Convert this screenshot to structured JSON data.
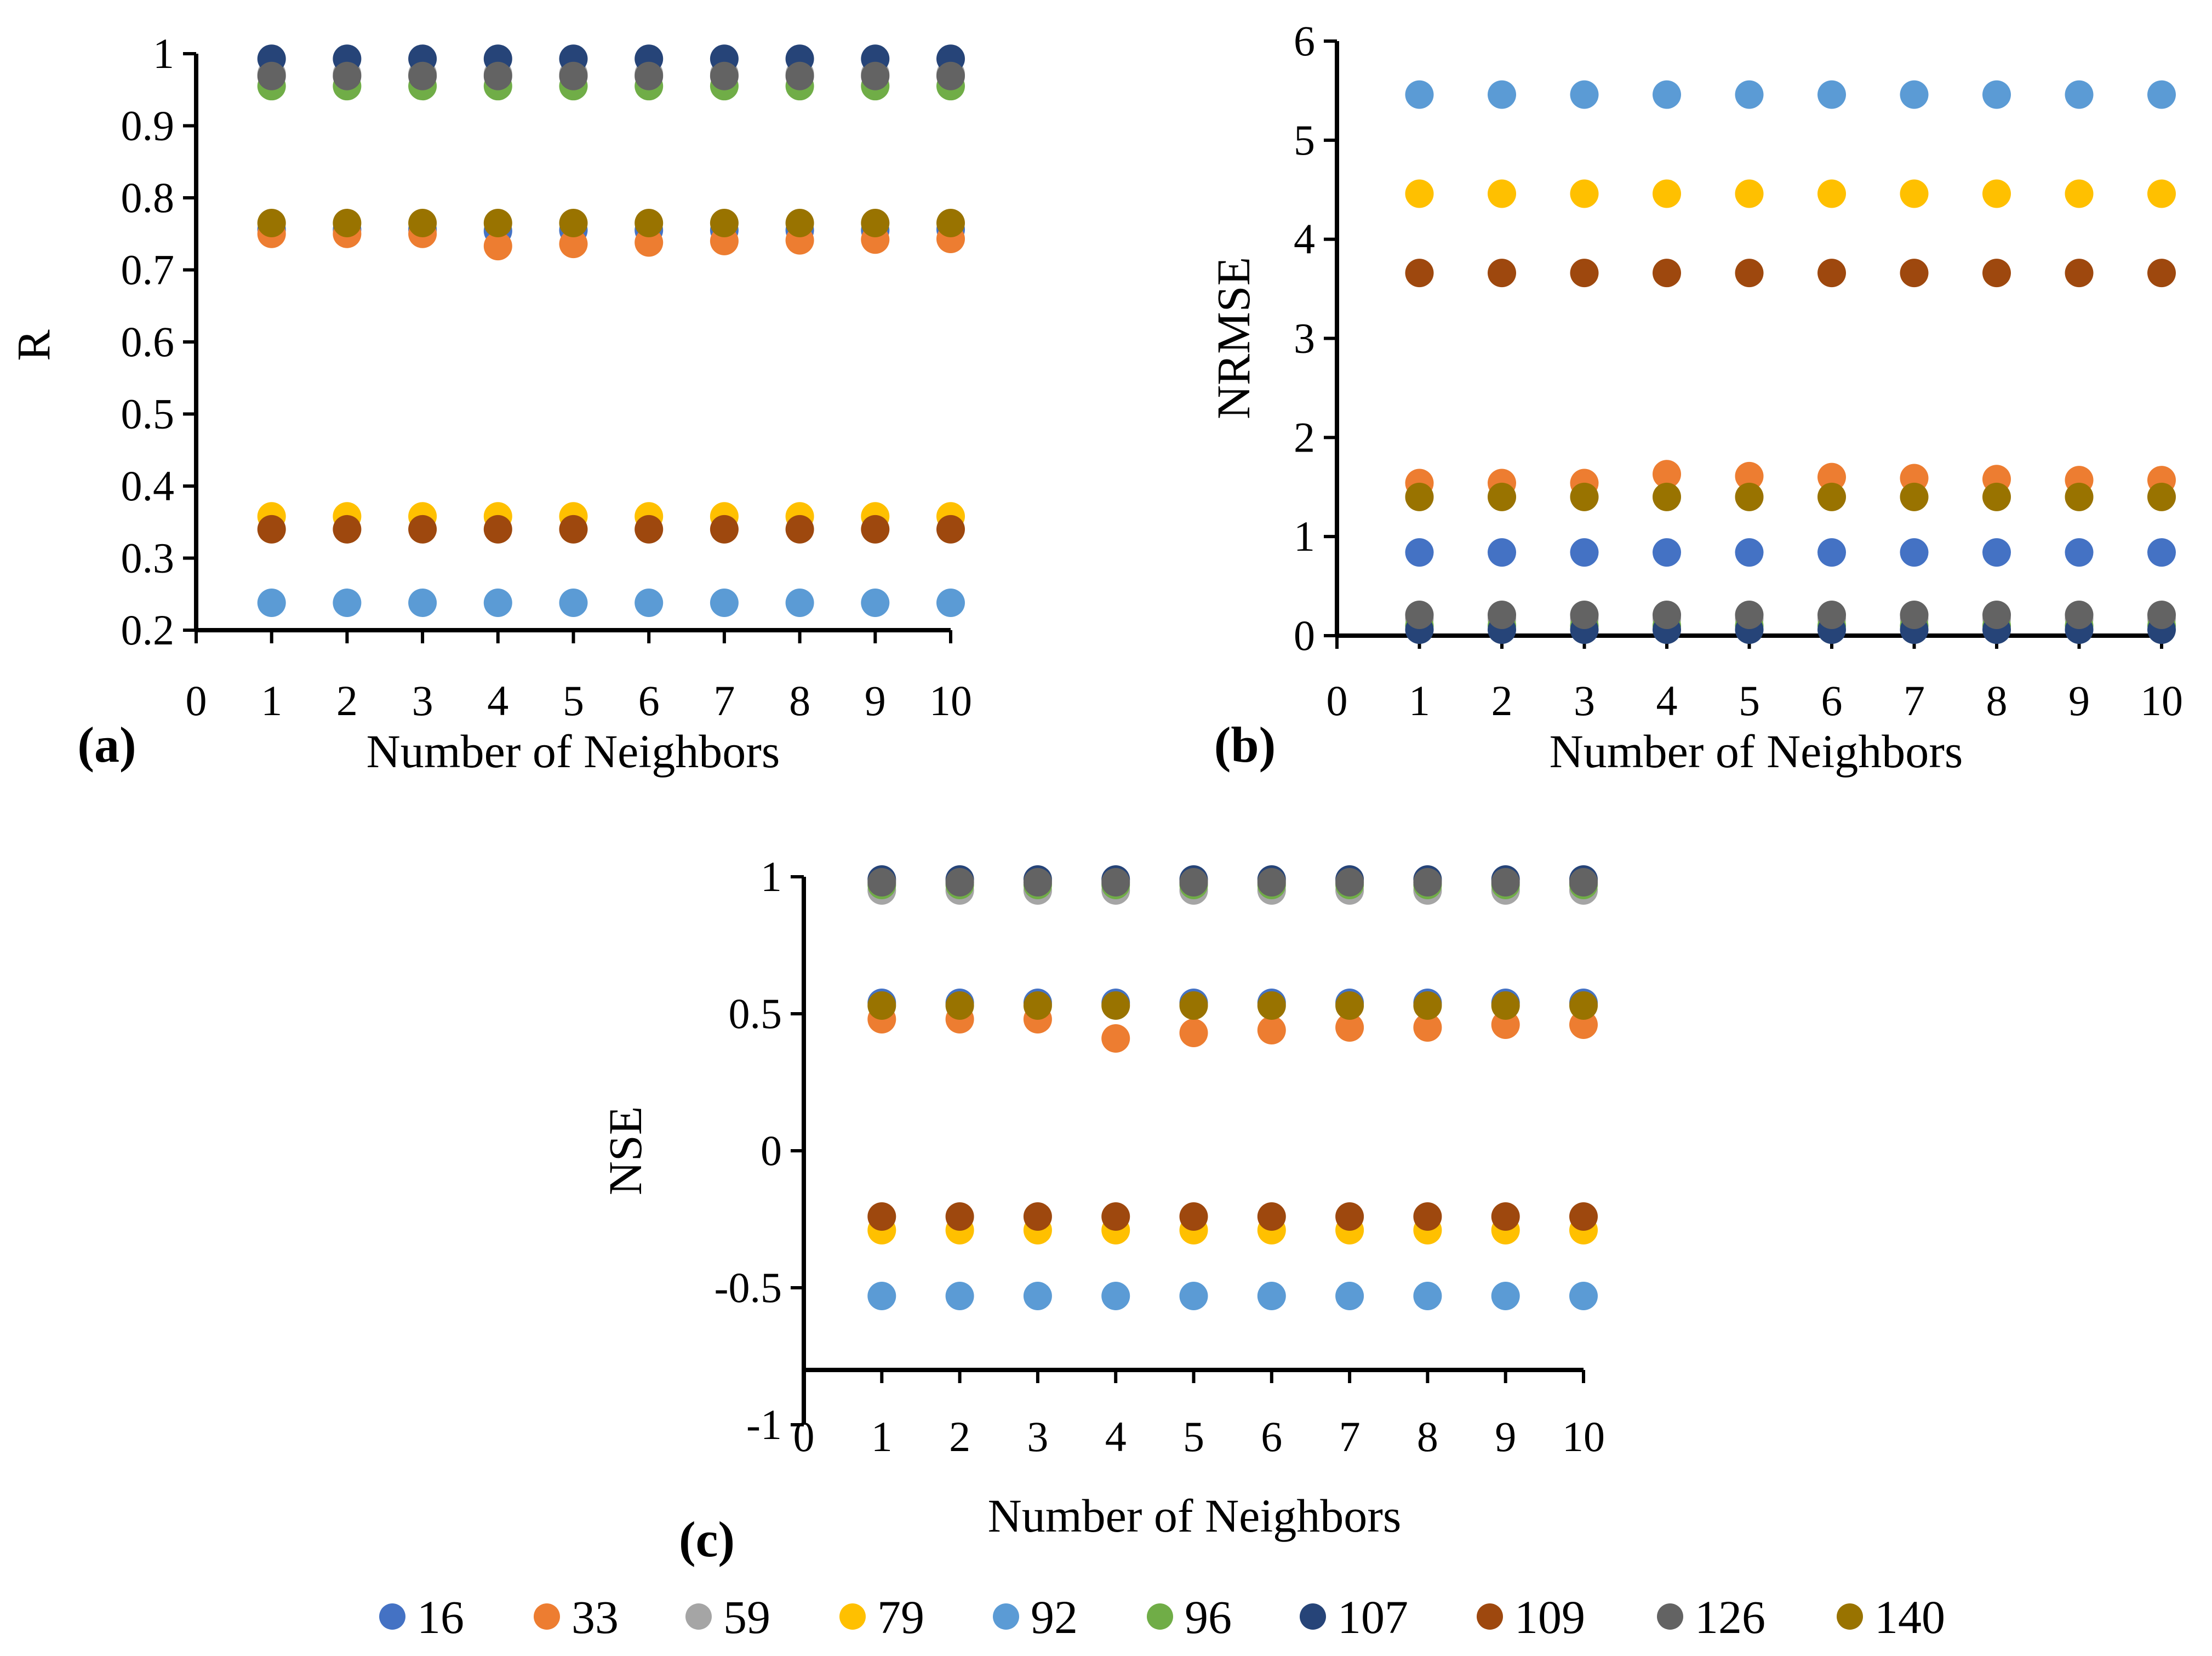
{
  "legend": {
    "labels": [
      "16",
      "33",
      "59",
      "79",
      "92",
      "96",
      "107",
      "109",
      "126",
      "140"
    ],
    "colors": [
      "#4472C4",
      "#ED7D31",
      "#A5A5A5",
      "#FFC000",
      "#5B9BD5",
      "#70AD47",
      "#264478",
      "#9E480E",
      "#636363",
      "#997300"
    ]
  },
  "chart_data": [
    {
      "type": "scatter",
      "panel_label": "(a)",
      "xlabel": "Number of Neighbors",
      "ylabel": "R",
      "xlim": [
        0,
        10
      ],
      "ylim": [
        0.2,
        1
      ],
      "x_ticks": [
        "0",
        "1",
        "2",
        "3",
        "4",
        "5",
        "6",
        "7",
        "8",
        "9",
        "10"
      ],
      "y_ticks": [
        "0.2",
        "0.3",
        "0.4",
        "0.5",
        "0.6",
        "0.7",
        "0.8",
        "0.9",
        "1"
      ],
      "x": [
        1,
        2,
        3,
        4,
        5,
        6,
        7,
        8,
        9,
        10
      ],
      "series": [
        {
          "name": "16",
          "values": [
            0.756,
            0.756,
            0.756,
            0.754,
            0.755,
            0.755,
            0.755,
            0.755,
            0.755,
            0.756
          ]
        },
        {
          "name": "33",
          "values": [
            0.75,
            0.75,
            0.75,
            0.733,
            0.736,
            0.738,
            0.74,
            0.741,
            0.742,
            0.743
          ]
        },
        {
          "name": "59",
          "values": [
            0.972,
            0.972,
            0.972,
            0.972,
            0.972,
            0.972,
            0.972,
            0.972,
            0.972,
            0.972
          ]
        },
        {
          "name": "79",
          "values": [
            0.358,
            0.358,
            0.358,
            0.358,
            0.358,
            0.358,
            0.358,
            0.358,
            0.358,
            0.358
          ]
        },
        {
          "name": "92",
          "values": [
            0.238,
            0.238,
            0.238,
            0.238,
            0.238,
            0.238,
            0.238,
            0.238,
            0.238,
            0.238
          ]
        },
        {
          "name": "96",
          "values": [
            0.955,
            0.955,
            0.955,
            0.955,
            0.955,
            0.955,
            0.955,
            0.955,
            0.955,
            0.955
          ]
        },
        {
          "name": "107",
          "values": [
            0.993,
            0.993,
            0.993,
            0.993,
            0.993,
            0.993,
            0.993,
            0.993,
            0.993,
            0.993
          ]
        },
        {
          "name": "109",
          "values": [
            0.34,
            0.34,
            0.34,
            0.34,
            0.34,
            0.34,
            0.34,
            0.34,
            0.34,
            0.34
          ]
        },
        {
          "name": "126",
          "values": [
            0.969,
            0.969,
            0.969,
            0.969,
            0.969,
            0.969,
            0.969,
            0.969,
            0.969,
            0.969
          ]
        },
        {
          "name": "140",
          "values": [
            0.765,
            0.765,
            0.765,
            0.765,
            0.765,
            0.765,
            0.765,
            0.765,
            0.765,
            0.765
          ]
        }
      ]
    },
    {
      "type": "scatter",
      "panel_label": "(b)",
      "xlabel": "Number of Neighbors",
      "ylabel": "NRMSE",
      "xlim": [
        0,
        10
      ],
      "ylim": [
        0,
        6
      ],
      "x_ticks": [
        "0",
        "1",
        "2",
        "3",
        "4",
        "5",
        "6",
        "7",
        "8",
        "9",
        "10"
      ],
      "y_ticks": [
        "0",
        "1",
        "2",
        "3",
        "4",
        "5",
        "6"
      ],
      "x": [
        1,
        2,
        3,
        4,
        5,
        6,
        7,
        8,
        9,
        10
      ],
      "series": [
        {
          "name": "16",
          "values": [
            0.84,
            0.84,
            0.84,
            0.84,
            0.84,
            0.84,
            0.84,
            0.84,
            0.84,
            0.84
          ]
        },
        {
          "name": "33",
          "values": [
            1.54,
            1.54,
            1.54,
            1.63,
            1.61,
            1.6,
            1.59,
            1.58,
            1.57,
            1.57
          ]
        },
        {
          "name": "59",
          "values": [
            0.17,
            0.17,
            0.17,
            0.17,
            0.17,
            0.17,
            0.17,
            0.17,
            0.17,
            0.17
          ]
        },
        {
          "name": "79",
          "values": [
            4.46,
            4.46,
            4.46,
            4.46,
            4.46,
            4.46,
            4.46,
            4.46,
            4.46,
            4.46
          ]
        },
        {
          "name": "92",
          "values": [
            5.46,
            5.46,
            5.46,
            5.46,
            5.46,
            5.46,
            5.46,
            5.46,
            5.46,
            5.46
          ]
        },
        {
          "name": "96",
          "values": [
            0.1,
            0.1,
            0.1,
            0.1,
            0.1,
            0.1,
            0.1,
            0.1,
            0.1,
            0.1
          ]
        },
        {
          "name": "107",
          "values": [
            0.06,
            0.06,
            0.06,
            0.06,
            0.06,
            0.06,
            0.06,
            0.06,
            0.06,
            0.06
          ]
        },
        {
          "name": "109",
          "values": [
            3.66,
            3.66,
            3.66,
            3.66,
            3.66,
            3.66,
            3.66,
            3.66,
            3.66,
            3.66
          ]
        },
        {
          "name": "126",
          "values": [
            0.21,
            0.21,
            0.21,
            0.21,
            0.21,
            0.21,
            0.21,
            0.21,
            0.21,
            0.21
          ]
        },
        {
          "name": "140",
          "values": [
            1.4,
            1.4,
            1.4,
            1.4,
            1.4,
            1.4,
            1.4,
            1.4,
            1.4,
            1.4
          ]
        }
      ]
    },
    {
      "type": "scatter",
      "panel_label": "(c)",
      "xlabel": "Number of Neighbors",
      "ylabel": "NSE",
      "xlim": [
        0,
        10
      ],
      "ylim": [
        -1,
        1
      ],
      "x_axis_crosses_at": -0.8,
      "x_ticks": [
        "0",
        "1",
        "2",
        "3",
        "4",
        "5",
        "6",
        "7",
        "8",
        "9",
        "10"
      ],
      "y_ticks": [
        "-1",
        "-0.5",
        "0",
        "0.5",
        "1"
      ],
      "x": [
        1,
        2,
        3,
        4,
        5,
        6,
        7,
        8,
        9,
        10
      ],
      "series": [
        {
          "name": "16",
          "values": [
            0.54,
            0.54,
            0.54,
            0.54,
            0.54,
            0.54,
            0.54,
            0.54,
            0.54,
            0.54
          ]
        },
        {
          "name": "33",
          "values": [
            0.48,
            0.48,
            0.48,
            0.41,
            0.43,
            0.44,
            0.45,
            0.45,
            0.46,
            0.46
          ]
        },
        {
          "name": "59",
          "values": [
            0.95,
            0.95,
            0.95,
            0.95,
            0.95,
            0.95,
            0.95,
            0.95,
            0.95,
            0.95
          ]
        },
        {
          "name": "79",
          "values": [
            -0.29,
            -0.29,
            -0.29,
            -0.29,
            -0.29,
            -0.29,
            -0.29,
            -0.29,
            -0.29,
            -0.29
          ]
        },
        {
          "name": "92",
          "values": [
            -0.53,
            -0.53,
            -0.53,
            -0.53,
            -0.53,
            -0.53,
            -0.53,
            -0.53,
            -0.53,
            -0.53
          ]
        },
        {
          "name": "96",
          "values": [
            0.97,
            0.97,
            0.97,
            0.97,
            0.97,
            0.97,
            0.97,
            0.97,
            0.97,
            0.97
          ]
        },
        {
          "name": "107",
          "values": [
            0.99,
            0.99,
            0.99,
            0.99,
            0.99,
            0.99,
            0.99,
            0.99,
            0.99,
            0.99
          ]
        },
        {
          "name": "109",
          "values": [
            -0.24,
            -0.24,
            -0.24,
            -0.24,
            -0.24,
            -0.24,
            -0.24,
            -0.24,
            -0.24,
            -0.24
          ]
        },
        {
          "name": "126",
          "values": [
            0.98,
            0.98,
            0.98,
            0.98,
            0.98,
            0.98,
            0.98,
            0.98,
            0.98,
            0.98
          ]
        },
        {
          "name": "140",
          "values": [
            0.53,
            0.53,
            0.53,
            0.53,
            0.53,
            0.53,
            0.53,
            0.53,
            0.53,
            0.53
          ]
        }
      ]
    }
  ]
}
